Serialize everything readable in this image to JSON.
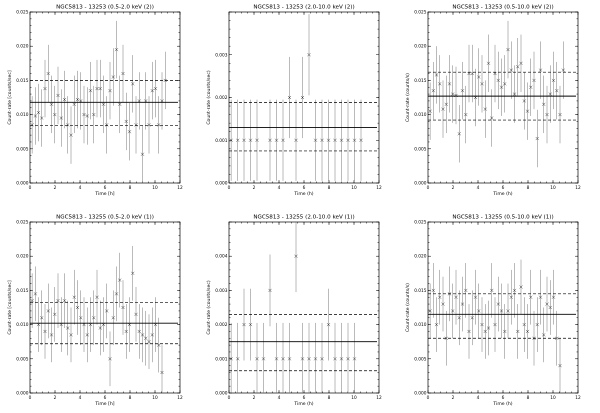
{
  "chart_data": [
    {
      "type": "scatter",
      "title": "NGC5813 - 13253 (0.5-2.0 keV (2))",
      "xlabel": "Time [h]",
      "ylabel": "Count-rate [counts/sec]",
      "xlim": [
        0,
        12
      ],
      "ylim": [
        0,
        0.025
      ],
      "xticks": [
        "0",
        "2",
        "4",
        "6",
        "8",
        "10",
        "12"
      ],
      "yticks": [
        "0.000",
        "0.005",
        "0.010",
        "0.015",
        "0.020",
        "0.025"
      ],
      "mean": 0.0118,
      "band": [
        0.0084,
        0.015
      ],
      "x": [
        0.17,
        0.43,
        0.68,
        0.94,
        1.2,
        1.46,
        1.72,
        1.98,
        2.24,
        2.5,
        2.76,
        3.02,
        3.28,
        3.54,
        3.8,
        4.06,
        4.32,
        4.58,
        4.84,
        5.1,
        5.36,
        5.62,
        5.88,
        6.14,
        6.4,
        6.66,
        6.92,
        7.18,
        7.44,
        7.7,
        7.96,
        8.22,
        8.48,
        8.74,
        9.0,
        9.26,
        9.52,
        9.78,
        10.04,
        10.3,
        10.56,
        10.82
      ],
      "y": [
        0.0085,
        0.0098,
        0.0103,
        0.0095,
        0.0138,
        0.016,
        0.0115,
        0.01,
        0.0128,
        0.0095,
        0.0122,
        0.0085,
        0.007,
        0.0115,
        0.0122,
        0.012,
        0.01,
        0.0098,
        0.0135,
        0.01,
        0.0138,
        0.0138,
        0.0115,
        0.0085,
        0.0135,
        0.0155,
        0.0195,
        0.0115,
        0.016,
        0.009,
        0.0075,
        0.0145,
        0.0085,
        0.012,
        0.0042,
        0.012,
        0.0085,
        0.0135,
        0.0138,
        0.0085,
        0.012,
        0.015
      ],
      "yerr": 0.0042
    },
    {
      "type": "scatter",
      "title": "NGC5813 - 13253 (2.0-10.0 keV (2))",
      "xlabel": "Time (h)",
      "ylabel": "Count-rate (counts/sec)",
      "xlim": [
        0,
        12
      ],
      "ylim": [
        0,
        0.004
      ],
      "xticks": [
        "0",
        "2",
        "4",
        "6",
        "8",
        "10",
        "12"
      ],
      "yticks": [
        "0.000",
        "0.001",
        "0.002",
        "0.003",
        ""
      ],
      "mean": 0.0013,
      "band": [
        0.00075,
        0.00188
      ],
      "x": [
        0.17,
        0.7,
        1.2,
        1.72,
        2.24,
        3.28,
        3.8,
        4.32,
        4.84,
        5.36,
        5.88,
        6.4,
        6.92,
        7.44,
        7.96,
        8.48,
        9.0,
        9.52,
        10.04,
        10.56
      ],
      "y": [
        0.001,
        0.001,
        0.001,
        0.001,
        0.001,
        0.001,
        0.001,
        0.001,
        0.002,
        0.001,
        0.002,
        0.003,
        0.001,
        0.001,
        0.001,
        0.001,
        0.001,
        0.001,
        0.001,
        0.001
      ],
      "yerr": 0.00095
    },
    {
      "type": "scatter",
      "title": "NGC5813 - 13253 (0.5-10.0 keV (2))",
      "xlabel": "Time (h)",
      "ylabel": "Count-rate (counts/s)",
      "xlim": [
        0,
        12
      ],
      "ylim": [
        0,
        0.025
      ],
      "xticks": [
        "0",
        "2",
        "4",
        "6",
        "8",
        "10",
        "12"
      ],
      "yticks": [
        "0.000",
        "0.005",
        "0.010",
        "0.015",
        "0.020",
        "0.025"
      ],
      "mean": 0.0127,
      "band": [
        0.0092,
        0.0162
      ],
      "x": [
        0.17,
        0.43,
        0.68,
        0.94,
        1.2,
        1.46,
        1.72,
        1.98,
        2.24,
        2.5,
        2.76,
        3.02,
        3.28,
        3.54,
        3.8,
        4.06,
        4.32,
        4.58,
        4.84,
        5.1,
        5.36,
        5.62,
        5.88,
        6.14,
        6.4,
        6.66,
        6.92,
        7.18,
        7.44,
        7.7,
        7.96,
        8.22,
        8.48,
        8.74,
        9.0,
        9.26,
        9.52,
        9.78,
        10.04,
        10.3,
        10.56,
        10.82
      ],
      "y": [
        0.0105,
        0.0135,
        0.0158,
        0.0145,
        0.0108,
        0.0115,
        0.0145,
        0.013,
        0.0128,
        0.0072,
        0.0135,
        0.01,
        0.016,
        0.016,
        0.0125,
        0.0155,
        0.0145,
        0.0108,
        0.0175,
        0.0095,
        0.016,
        0.015,
        0.014,
        0.0145,
        0.0195,
        0.0165,
        0.013,
        0.017,
        0.0175,
        0.012,
        0.0105,
        0.014,
        0.015,
        0.0065,
        0.0165,
        0.0115,
        0.01,
        0.013,
        0.015,
        0.0135,
        0.01,
        0.0165
      ],
      "yerr": 0.0042
    },
    {
      "type": "scatter",
      "title": "NGC5813 - 13255 (0.5-2.0 keV (1))",
      "xlabel": "Time [h]",
      "ylabel": "Count-rate [counts/sec]",
      "xlim": [
        0,
        12
      ],
      "ylim": [
        0,
        0.025
      ],
      "xticks": [
        "0",
        "2",
        "4",
        "6",
        "8",
        "10",
        "12"
      ],
      "yticks": [
        "0.000",
        "0.005",
        "0.010",
        "0.015",
        "0.020",
        "0.025"
      ],
      "mean": 0.0102,
      "band": [
        0.0072,
        0.0132
      ],
      "x": [
        0.17,
        0.43,
        0.68,
        0.94,
        1.2,
        1.46,
        1.72,
        1.98,
        2.24,
        2.5,
        2.76,
        3.02,
        3.28,
        3.54,
        3.8,
        4.06,
        4.32,
        4.58,
        4.84,
        5.1,
        5.36,
        5.62,
        5.88,
        6.14,
        6.4,
        6.66,
        6.92,
        7.18,
        7.44,
        7.7,
        7.96,
        8.22,
        8.48,
        8.74,
        9.0,
        9.26,
        9.52,
        9.78,
        10.04,
        10.3,
        10.56
      ],
      "y": [
        0.0135,
        0.0145,
        0.01,
        0.011,
        0.009,
        0.012,
        0.0085,
        0.0115,
        0.0135,
        0.01,
        0.0135,
        0.0095,
        0.0085,
        0.014,
        0.0125,
        0.011,
        0.01,
        0.0085,
        0.01,
        0.011,
        0.014,
        0.0095,
        0.01,
        0.012,
        0.005,
        0.011,
        0.0145,
        0.0165,
        0.0125,
        0.009,
        0.01,
        0.0175,
        0.0115,
        0.009,
        0.0085,
        0.008,
        0.0075,
        0.0085,
        0.01,
        0.007,
        0.003
      ],
      "yerr": 0.004
    },
    {
      "type": "scatter",
      "title": "NGC5813 - 13255 (2.0-10.0 keV (1))",
      "xlabel": "Time (h)",
      "ylabel": "Count-rate (counts/sec)",
      "xlim": [
        0,
        12
      ],
      "ylim": [
        0,
        0.005
      ],
      "xticks": [
        "0",
        "2",
        "4",
        "6",
        "8",
        "10",
        "12"
      ],
      "yticks": [
        "0.000",
        "0.001",
        "0.002",
        "0.003",
        "0.004",
        ""
      ],
      "mean": 0.0015,
      "band": [
        0.00065,
        0.0023
      ],
      "x": [
        0.17,
        0.7,
        1.2,
        1.72,
        2.24,
        2.76,
        3.28,
        3.8,
        4.32,
        4.84,
        5.36,
        5.88,
        6.4,
        6.92,
        7.44,
        7.96,
        8.48,
        9.0,
        9.52,
        10.04
      ],
      "y": [
        0.001,
        0.001,
        0.002,
        0.002,
        0.001,
        0.001,
        0.003,
        0.001,
        0.001,
        0.001,
        0.004,
        0.001,
        0.001,
        0.001,
        0.001,
        0.002,
        0.001,
        0.001,
        0.001,
        0.001
      ],
      "yerr": 0.00105
    },
    {
      "type": "scatter",
      "title": "NGC5813 - 13255 (0.5-10.0 keV (1))",
      "xlabel": "Time (h)",
      "ylabel": "Count-rate (counts/s)",
      "xlim": [
        0,
        12
      ],
      "ylim": [
        0,
        0.025
      ],
      "xticks": [
        "0",
        "2",
        "4",
        "6",
        "8",
        "10",
        "12"
      ],
      "yticks": [
        "0.000",
        "0.005",
        "0.010",
        "0.015",
        "0.020",
        "0.025"
      ],
      "mean": 0.0115,
      "band": [
        0.008,
        0.0145
      ],
      "x": [
        0.17,
        0.43,
        0.68,
        0.94,
        1.2,
        1.46,
        1.72,
        1.98,
        2.24,
        2.5,
        2.76,
        3.02,
        3.28,
        3.54,
        3.8,
        4.06,
        4.32,
        4.58,
        4.84,
        5.1,
        5.36,
        5.62,
        5.88,
        6.14,
        6.4,
        6.66,
        6.92,
        7.18,
        7.44,
        7.7,
        7.96,
        8.22,
        8.48,
        8.74,
        9.0,
        9.26,
        9.52,
        9.78,
        10.04,
        10.3,
        10.56
      ],
      "y": [
        0.012,
        0.015,
        0.01,
        0.014,
        0.013,
        0.008,
        0.0145,
        0.012,
        0.014,
        0.011,
        0.013,
        0.015,
        0.009,
        0.011,
        0.014,
        0.012,
        0.01,
        0.009,
        0.0095,
        0.015,
        0.01,
        0.013,
        0.012,
        0.009,
        0.012,
        0.014,
        0.015,
        0.009,
        0.0155,
        0.01,
        0.009,
        0.014,
        0.008,
        0.01,
        0.014,
        0.0085,
        0.013,
        0.0125,
        0.014,
        0.008,
        0.004
      ],
      "yerr": 0.004
    }
  ]
}
